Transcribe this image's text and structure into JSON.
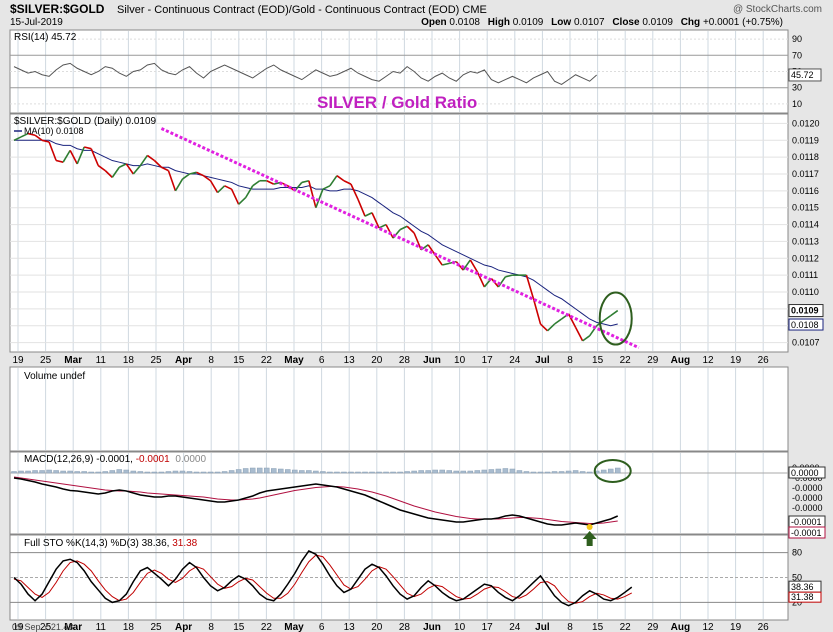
{
  "header": {
    "symbol": "$SILVER:$GOLD",
    "description": "Silver - Continuous Contract (EOD)/Gold - Continuous Contract (EOD) CME",
    "watermark": "@ StockCharts.com",
    "date": "15-Jul-2019",
    "ohlc": "Open 0.0108  High 0.0109  Low 0.0107  Close 0.0109  Chg +0.0001 (+0.75%)",
    "ohlc_parts": [
      {
        "label": "Open",
        "value": "0.0108"
      },
      {
        "label": "High",
        "value": "0.0109"
      },
      {
        "label": "Low",
        "value": "0.0107"
      },
      {
        "label": "Close",
        "value": "0.0109"
      },
      {
        "label": "Chg",
        "value": "+0.0001 (+0.75%)"
      }
    ]
  },
  "footer": {
    "timestamp": "09 Sep Y:21.43"
  },
  "colors": {
    "up": "#2e7d32",
    "down": "#cc0000",
    "ma": "#1a237e",
    "trend": "#e020e0",
    "circle": "#2e5e1e",
    "panel_bg": "#ffffff",
    "grid": "#c8c8c8"
  },
  "x_axis": {
    "labels": [
      "19",
      "25",
      "Mar",
      "11",
      "18",
      "25",
      "Apr",
      "8",
      "15",
      "22",
      "May",
      "6",
      "13",
      "20",
      "28",
      "Jun",
      "10",
      "17",
      "24",
      "Jul",
      "8",
      "15",
      "22",
      "29",
      "Aug",
      "12",
      "19",
      "26"
    ],
    "bold": [
      "Mar",
      "Apr",
      "May",
      "Jun",
      "Jul",
      "Aug"
    ]
  },
  "chart_data": [
    {
      "type": "line",
      "panel": "rsi",
      "legend": "RSI(14) 45.72",
      "y_ticks": [
        90,
        70,
        50,
        30,
        10
      ],
      "ylim": [
        0,
        100
      ],
      "last_value_label": "45.72",
      "values": [
        56,
        52,
        48,
        50,
        46,
        44,
        52,
        58,
        60,
        54,
        50,
        46,
        50,
        56,
        54,
        48,
        44,
        50,
        52,
        58,
        60,
        52,
        48,
        46,
        52,
        56,
        48,
        42,
        50,
        54,
        58,
        54,
        50,
        46,
        42,
        48,
        54,
        58,
        52,
        48,
        44,
        40,
        46,
        52,
        48,
        44,
        46,
        50,
        54,
        48,
        44,
        40,
        38,
        44,
        50,
        48,
        56,
        50,
        42,
        38,
        44,
        48,
        42,
        38,
        46,
        50,
        48,
        52,
        40,
        36,
        40,
        44,
        40,
        36,
        42,
        46,
        50,
        38,
        34,
        40,
        46,
        42,
        38,
        45.72
      ]
    },
    {
      "type": "line",
      "panel": "price",
      "title": "SILVER  / Gold Ratio",
      "legend_series": "$SILVER:$GOLD (Daily) 0.0109",
      "legend_ma": "MA(10) 0.0108",
      "y_ticks": [
        "0.0120",
        "0.0119",
        "0.0118",
        "0.0117",
        "0.0116",
        "0.0115",
        "0.0114",
        "0.0113",
        "0.0112",
        "0.0111",
        "0.0110",
        "0.0109",
        "0.0108",
        "0.0107"
      ],
      "ylim": [
        0.01065,
        0.01205
      ],
      "last_value_label": "0.0109",
      "ma_value_label": "0.0108",
      "values": [
        0.0119,
        0.01192,
        0.01194,
        0.01193,
        0.0119,
        0.01189,
        0.01178,
        0.01177,
        0.01184,
        0.01176,
        0.01186,
        0.01185,
        0.01175,
        0.01172,
        0.01168,
        0.01174,
        0.01176,
        0.0117,
        0.01175,
        0.01181,
        0.01178,
        0.01174,
        0.01172,
        0.0116,
        0.01167,
        0.0117,
        0.01171,
        0.01169,
        0.01166,
        0.01159,
        0.01163,
        0.01161,
        0.01152,
        0.01156,
        0.01163,
        0.01166,
        0.01166,
        0.01164,
        0.01165,
        0.01163,
        0.0116,
        0.01165,
        0.01166,
        0.0115,
        0.01161,
        0.01163,
        0.01169,
        0.01166,
        0.01164,
        0.01155,
        0.01145,
        0.01147,
        0.01138,
        0.0114,
        0.01132,
        0.01137,
        0.01139,
        0.01135,
        0.01125,
        0.01128,
        0.01122,
        0.01116,
        0.01117,
        0.01118,
        0.01113,
        0.01119,
        0.01112,
        0.01103,
        0.01108,
        0.01103,
        0.01109,
        0.0111,
        0.0111,
        0.0111,
        0.01096,
        0.01081,
        0.01077,
        0.01081,
        0.01084,
        0.01087,
        0.01079,
        0.01071,
        0.01074,
        0.0108,
        0.01083,
        0.01086,
        0.01089
      ],
      "ma_values": [
        0.0119,
        0.0119,
        0.0119,
        0.0119,
        0.0119,
        0.0119,
        0.01188,
        0.01187,
        0.01187,
        0.01185,
        0.01184,
        0.01184,
        0.01182,
        0.0118,
        0.01178,
        0.01177,
        0.01176,
        0.01175,
        0.01175,
        0.01176,
        0.01175,
        0.01174,
        0.01174,
        0.01172,
        0.01171,
        0.0117,
        0.0117,
        0.01169,
        0.01168,
        0.01167,
        0.01166,
        0.01165,
        0.01163,
        0.01162,
        0.01161,
        0.01161,
        0.01161,
        0.01161,
        0.01162,
        0.01162,
        0.01162,
        0.01162,
        0.01163,
        0.01161,
        0.01161,
        0.0116,
        0.0116,
        0.01161,
        0.01161,
        0.0116,
        0.01158,
        0.01156,
        0.01153,
        0.0115,
        0.01147,
        0.01145,
        0.01142,
        0.01139,
        0.01136,
        0.01134,
        0.01131,
        0.01128,
        0.01126,
        0.01124,
        0.01122,
        0.0112,
        0.01118,
        0.01116,
        0.01115,
        0.01113,
        0.01112,
        0.01111,
        0.0111,
        0.01109,
        0.01107,
        0.01104,
        0.01101,
        0.01098,
        0.01096,
        0.01093,
        0.0109,
        0.01087,
        0.01084,
        0.01082,
        0.01081,
        0.0108,
        0.01081
      ],
      "trendline": {
        "from": [
          21,
          0.01197
        ],
        "to": [
          89,
          0.01067
        ]
      }
    },
    {
      "type": "bar",
      "panel": "volume",
      "legend": "Volume undef",
      "values": []
    },
    {
      "type": "line",
      "panel": "macd",
      "legend_prefix": "MACD(12,26,9) -0.0001, ",
      "legend_signal": "-0.0001",
      "legend_hist": "0.0000",
      "y_ticks": [
        "0.0000",
        "-0.0000",
        "-0.0000",
        "-0.0000",
        "-0.0000",
        "-0.0001",
        "-0.0001"
      ],
      "ylim": [
        -0.00012,
        4e-05
      ],
      "last_value_label": "-0.0001",
      "last_signal_label": "-0.0001",
      "hist_label": "0.0000",
      "macd": [
        -1e-05,
        -1.2e-05,
        -1.5e-05,
        -1.8e-05,
        -2.2e-05,
        -2.5e-05,
        -2.8e-05,
        -3.2e-05,
        -3.5e-05,
        -3.6e-05,
        -3.8e-05,
        -4e-05,
        -4.2e-05,
        -4e-05,
        -3.6e-05,
        -3.4e-05,
        -3.6e-05,
        -4e-05,
        -4.4e-05,
        -4.6e-05,
        -4.8e-05,
        -4.8e-05,
        -4.6e-05,
        -4.6e-05,
        -4.8e-05,
        -5e-05,
        -5.2e-05,
        -5.4e-05,
        -5.6e-05,
        -5.8e-05,
        -5.8e-05,
        -5.6e-05,
        -5.4e-05,
        -5e-05,
        -4.6e-05,
        -4e-05,
        -3.6e-05,
        -3.4e-05,
        -3.2e-05,
        -3e-05,
        -2.8e-05,
        -2.6e-05,
        -2.4e-05,
        -2.2e-05,
        -2.4e-05,
        -2.6e-05,
        -2.8e-05,
        -3.2e-05,
        -3.6e-05,
        -4e-05,
        -4.4e-05,
        -5e-05,
        -5.6e-05,
        -6.2e-05,
        -6.8e-05,
        -7.4e-05,
        -7.8e-05,
        -8.2e-05,
        -8.6e-05,
        -9e-05,
        -9.2e-05,
        -9.4e-05,
        -9.6e-05,
        -9.8e-05,
        -9.8e-05,
        -9.6e-05,
        -9.4e-05,
        -9.2e-05,
        -9.2e-05,
        -9e-05,
        -8.6e-05,
        -8.4e-05,
        -8.6e-05,
        -9e-05,
        -9.4e-05,
        -9.8e-05,
        -0.000102,
        -0.000104,
        -0.000104,
        -0.000102,
        -0.0001,
        -0.000102,
        -0.000104,
        -0.0001,
        -9.6e-05,
        -9.2e-05,
        -8.6e-05
      ],
      "signal": [
        -8e-06,
        -1e-05,
        -1.2e-05,
        -1.4e-05,
        -1.6e-05,
        -1.8e-05,
        -2e-05,
        -2.2e-05,
        -2.4e-05,
        -2.6e-05,
        -2.8e-05,
        -3e-05,
        -3.2e-05,
        -3.4e-05,
        -3.5e-05,
        -3.6e-05,
        -3.6e-05,
        -3.7e-05,
        -3.8e-05,
        -4e-05,
        -4.1e-05,
        -4.2e-05,
        -4.3e-05,
        -4.4e-05,
        -4.5e-05,
        -4.6e-05,
        -4.7e-05,
        -4.8e-05,
        -5e-05,
        -5.2e-05,
        -5.3e-05,
        -5.4e-05,
        -5.4e-05,
        -5.3e-05,
        -5.2e-05,
        -5e-05,
        -4.7e-05,
        -4.4e-05,
        -4.1e-05,
        -3.8e-05,
        -3.5e-05,
        -3.3e-05,
        -3.1e-05,
        -2.9e-05,
        -2.8e-05,
        -2.7e-05,
        -2.7e-05,
        -2.8e-05,
        -3e-05,
        -3.2e-05,
        -3.5e-05,
        -3.8e-05,
        -4.2e-05,
        -4.6e-05,
        -5.1e-05,
        -5.6e-05,
        -6.1e-05,
        -6.6e-05,
        -7e-05,
        -7.4e-05,
        -7.8e-05,
        -8.1e-05,
        -8.4e-05,
        -8.7e-05,
        -8.9e-05,
        -9.1e-05,
        -9.2e-05,
        -9.2e-05,
        -9.2e-05,
        -9.2e-05,
        -9.1e-05,
        -9e-05,
        -8.9e-05,
        -8.9e-05,
        -9e-05,
        -9.1e-05,
        -9.3e-05,
        -9.5e-05,
        -9.7e-05,
        -9.8e-05,
        -9.9e-05,
        -0.0001,
        -0.000101,
        -0.000101,
        -0.0001,
        -9.8e-05,
        -9.6e-05
      ],
      "hist": [
        3e-06,
        4e-06,
        4e-06,
        5e-06,
        5e-06,
        6e-06,
        5e-06,
        4e-06,
        4e-06,
        3e-06,
        3e-06,
        2e-06,
        2e-06,
        3e-06,
        5e-06,
        7e-06,
        6e-06,
        4e-06,
        3e-06,
        2e-06,
        2e-06,
        2e-06,
        3e-06,
        4e-06,
        4e-06,
        3e-06,
        2e-06,
        2e-06,
        2e-06,
        2e-06,
        3e-06,
        5e-06,
        7e-06,
        9e-06,
        1e-05,
        1e-05,
        1e-05,
        9e-06,
        8e-06,
        7e-06,
        6e-06,
        5e-06,
        5e-06,
        4e-06,
        3e-06,
        2e-06,
        2e-06,
        2e-06,
        2e-06,
        2e-06,
        2e-06,
        2e-06,
        2e-06,
        2e-06,
        2e-06,
        2e-06,
        3e-06,
        4e-06,
        5e-06,
        5e-06,
        6e-06,
        6e-06,
        5e-06,
        4e-06,
        4e-06,
        4e-06,
        5e-06,
        6e-06,
        7e-06,
        8e-06,
        9e-06,
        8e-06,
        5e-06,
        3e-06,
        2e-06,
        2e-06,
        2e-06,
        3e-06,
        3e-06,
        4e-06,
        5e-06,
        3e-06,
        2e-06,
        4e-06,
        6e-06,
        8e-06,
        1e-05
      ]
    },
    {
      "type": "line",
      "panel": "sto",
      "legend_prefix": "Full STO %K(14,3) %D(3) 38.36, ",
      "legend_d": "31.38",
      "y_ticks": [
        80,
        50,
        20
      ],
      "ylim": [
        0,
        100
      ],
      "last_k_label": "38.36",
      "last_d_label": "31.38",
      "k": [
        50,
        42,
        30,
        22,
        30,
        45,
        60,
        70,
        72,
        68,
        58,
        45,
        35,
        25,
        20,
        22,
        30,
        45,
        58,
        62,
        55,
        48,
        40,
        48,
        60,
        68,
        62,
        50,
        40,
        34,
        38,
        46,
        52,
        48,
        40,
        30,
        24,
        22,
        30,
        42,
        55,
        70,
        82,
        78,
        66,
        52,
        40,
        32,
        36,
        48,
        60,
        66,
        62,
        52,
        40,
        30,
        24,
        28,
        38,
        46,
        40,
        32,
        26,
        22,
        24,
        30,
        36,
        42,
        40,
        32,
        26,
        22,
        28,
        36,
        44,
        52,
        40,
        28,
        20,
        16,
        20,
        28,
        34,
        30,
        24,
        22,
        26,
        32,
        38.36
      ],
      "d": [
        48,
        46,
        38,
        30,
        26,
        32,
        44,
        58,
        68,
        70,
        66,
        58,
        46,
        35,
        27,
        22,
        24,
        32,
        44,
        55,
        59,
        55,
        48,
        44,
        49,
        58,
        63,
        60,
        51,
        42,
        37,
        39,
        45,
        49,
        47,
        39,
        31,
        25,
        25,
        31,
        42,
        56,
        69,
        77,
        75,
        65,
        53,
        41,
        36,
        39,
        48,
        58,
        63,
        60,
        51,
        41,
        31,
        27,
        30,
        37,
        41,
        39,
        33,
        27,
        24,
        25,
        30,
        36,
        39,
        38,
        33,
        27,
        25,
        29,
        36,
        44,
        45,
        40,
        29,
        21,
        19,
        21,
        27,
        31,
        29,
        25,
        24,
        27,
        31.38
      ]
    }
  ]
}
